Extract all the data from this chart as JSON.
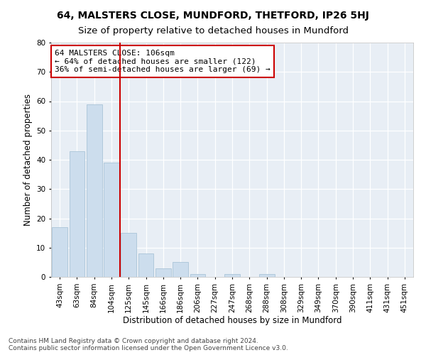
{
  "title": "64, MALSTERS CLOSE, MUNDFORD, THETFORD, IP26 5HJ",
  "subtitle": "Size of property relative to detached houses in Mundford",
  "xlabel": "Distribution of detached houses by size in Mundford",
  "ylabel": "Number of detached properties",
  "categories": [
    "43sqm",
    "63sqm",
    "84sqm",
    "104sqm",
    "125sqm",
    "145sqm",
    "166sqm",
    "186sqm",
    "206sqm",
    "227sqm",
    "247sqm",
    "268sqm",
    "288sqm",
    "308sqm",
    "329sqm",
    "349sqm",
    "370sqm",
    "390sqm",
    "411sqm",
    "431sqm",
    "451sqm"
  ],
  "values": [
    17,
    43,
    59,
    39,
    15,
    8,
    3,
    5,
    1,
    0,
    1,
    0,
    1,
    0,
    0,
    0,
    0,
    0,
    0,
    0,
    0
  ],
  "bar_color": "#ccdded",
  "bar_edge_color": "#aac4d8",
  "red_line_x": 3.5,
  "annotation_text": "64 MALSTERS CLOSE: 106sqm\n← 64% of detached houses are smaller (122)\n36% of semi-detached houses are larger (69) →",
  "annotation_box_color": "#ffffff",
  "annotation_box_edge": "#cc0000",
  "ylim": [
    0,
    80
  ],
  "yticks": [
    0,
    10,
    20,
    30,
    40,
    50,
    60,
    70,
    80
  ],
  "footer_line1": "Contains HM Land Registry data © Crown copyright and database right 2024.",
  "footer_line2": "Contains public sector information licensed under the Open Government Licence v3.0.",
  "bg_color": "#e8eef5",
  "grid_color": "#ffffff",
  "fig_bg_color": "#ffffff",
  "title_fontsize": 10,
  "subtitle_fontsize": 9.5,
  "axis_label_fontsize": 8.5,
  "tick_fontsize": 7.5,
  "annotation_fontsize": 8,
  "footer_fontsize": 6.5
}
